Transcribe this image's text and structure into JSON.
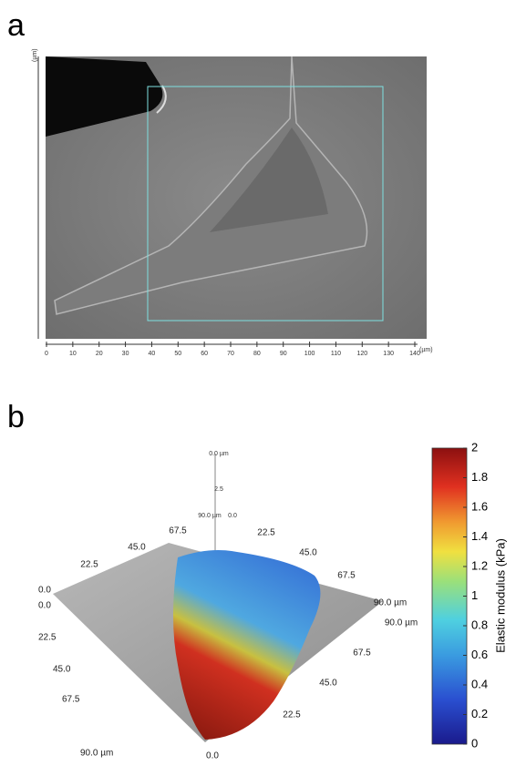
{
  "panel_a": {
    "label": "a",
    "x_unit": "(µm)",
    "y_unit": "(µm)",
    "x_ticks": [
      0,
      10,
      20,
      30,
      40,
      50,
      60,
      70,
      80,
      90,
      100,
      110,
      120,
      130,
      140
    ],
    "x_range": [
      0,
      140
    ]
  },
  "panel_b": {
    "label": "b",
    "axis_labels": [
      "0.0 µm",
      "2.5",
      "90.0 µm",
      "0.0",
      "22.5",
      "45.0",
      "67.5",
      "22.5",
      "45.0",
      "67.5",
      "90.0 µm",
      "90.0 µm",
      "67.5",
      "45.0",
      "22.5",
      "0.0",
      "0.0",
      "0.0",
      "22.5",
      "45.0",
      "67.5",
      "90.0 µm"
    ],
    "colorbar": {
      "title": "Elastic modulus (kPa)",
      "range": [
        0,
        2
      ],
      "ticks": [
        0,
        0.2,
        0.4,
        0.6,
        0.8,
        1,
        1.2,
        1.4,
        1.6,
        1.8,
        2
      ]
    }
  }
}
